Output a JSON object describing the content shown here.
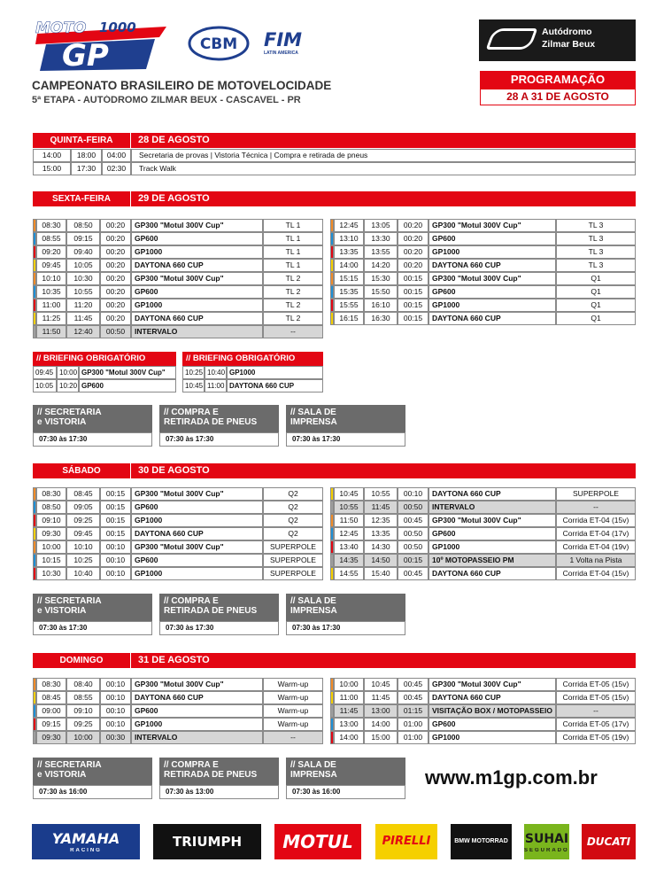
{
  "header": {
    "logo": {
      "moto": "MOTO",
      "number": "1000",
      "gp": "GP"
    },
    "cbm": "CBM",
    "fim": "FIM",
    "fim_sub": "LATIN AMERICA",
    "title": "CAMPEONATO BRASILEIRO DE MOTOVELOCIDADE",
    "subtitle": "5ª ETAPA - AUTÓDROMO ZILMAR BEUX - CASCAVEL - PR",
    "venue": [
      "Autódromo",
      "Zilmar Beux"
    ],
    "program": "PROGRAMAÇÃO",
    "dates": "28 A 31 DE AGOSTO"
  },
  "days": [
    {
      "day": "QUINTA-FEIRA",
      "date": "28 DE AGOSTO",
      "general": [
        [
          "14:00",
          "18:00",
          "04:00",
          "Secretaria de provas | Vistoria Técnica | Compra e retirada de pneus"
        ],
        [
          "15:00",
          "17:30",
          "02:30",
          "Track Walk"
        ]
      ]
    },
    {
      "day": "SEXTA-FEIRA",
      "date": "29 DE AGOSTO",
      "left": [
        {
          "cells": [
            "08:30",
            "08:50",
            "00:20",
            "GP300 \"Motul 300V Cup\"",
            "TL 1"
          ],
          "color": "#f28c28"
        },
        {
          "cells": [
            "08:55",
            "09:15",
            "00:20",
            "GP600",
            "TL 1"
          ],
          "color": "#1e8fd6"
        },
        {
          "cells": [
            "09:20",
            "09:40",
            "00:20",
            "GP1000",
            "TL 1"
          ],
          "color": "#e30613"
        },
        {
          "cells": [
            "09:45",
            "10:05",
            "00:20",
            "DAYTONA 660 CUP",
            "TL 1"
          ],
          "color": "#f5d000"
        },
        {
          "cells": [
            "10:10",
            "10:30",
            "00:20",
            "GP300 \"Motul 300V Cup\"",
            "TL 2"
          ],
          "color": "#f28c28"
        },
        {
          "cells": [
            "10:35",
            "10:55",
            "00:20",
            "GP600",
            "TL 2"
          ],
          "color": "#1e8fd6"
        },
        {
          "cells": [
            "11:00",
            "11:20",
            "00:20",
            "GP1000",
            "TL 2"
          ],
          "color": "#e30613"
        },
        {
          "cells": [
            "11:25",
            "11:45",
            "00:20",
            "DAYTONA 660 CUP",
            "TL 2"
          ],
          "color": "#f5d000"
        },
        {
          "cells": [
            "11:50",
            "12:40",
            "00:50",
            "INTERVALO",
            "--"
          ],
          "color": "#9e9e9e",
          "background": "#d6d6d6"
        }
      ],
      "right": [
        {
          "cells": [
            "12:45",
            "13:05",
            "00:20",
            "GP300 \"Motul 300V Cup\"",
            "TL 3"
          ],
          "color": "#f28c28"
        },
        {
          "cells": [
            "13:10",
            "13:30",
            "00:20",
            "GP600",
            "TL 3"
          ],
          "color": "#1e8fd6"
        },
        {
          "cells": [
            "13:35",
            "13:55",
            "00:20",
            "GP1000",
            "TL 3"
          ],
          "color": "#e30613"
        },
        {
          "cells": [
            "14:00",
            "14:20",
            "00:20",
            "DAYTONA 660 CUP",
            "TL 3"
          ],
          "color": "#f5d000"
        },
        {
          "cells": [
            "15:15",
            "15:30",
            "00:15",
            "GP300 \"Motul 300V Cup\"",
            "Q1"
          ],
          "color": "#f28c28"
        },
        {
          "cells": [
            "15:35",
            "15:50",
            "00:15",
            "GP600",
            "Q1"
          ],
          "color": "#1e8fd6"
        },
        {
          "cells": [
            "15:55",
            "16:10",
            "00:15",
            "GP1000",
            "Q1"
          ],
          "color": "#e30613"
        },
        {
          "cells": [
            "16:15",
            "16:30",
            "00:15",
            "DAYTONA 660 CUP",
            "Q1"
          ],
          "color": "#f5d000"
        }
      ],
      "briefings": [
        {
          "title": "// BRIEFING OBRIGATÓRIO",
          "rows": [
            [
              "09:45",
              "10:00",
              "GP300 \"Motul 300V Cup\""
            ],
            [
              "10:05",
              "10:20",
              "GP600"
            ]
          ]
        },
        {
          "title": "// BRIEFING OBRIGATÓRIO",
          "rows": [
            [
              "10:25",
              "10:40",
              "GP1000"
            ],
            [
              "10:45",
              "11:00",
              "DAYTONA 660 CUP"
            ]
          ]
        }
      ],
      "info": [
        {
          "title": [
            "// SECRETARIA",
            "e VISTORIA"
          ],
          "time": "07:30 às 17:30"
        },
        {
          "title": [
            "// COMPRA E",
            "RETIRADA DE PNEUS"
          ],
          "time": "07:30 às 17:30"
        },
        {
          "title": [
            "// SALA DE",
            "IMPRENSA"
          ],
          "time": "07:30 às 17:30"
        }
      ]
    },
    {
      "day": "SÁBADO",
      "date": "30 DE AGOSTO",
      "left": [
        {
          "cells": [
            "08:30",
            "08:45",
            "00:15",
            "GP300 \"Motul 300V Cup\"",
            "Q2"
          ],
          "color": "#f28c28"
        },
        {
          "cells": [
            "08:50",
            "09:05",
            "00:15",
            "GP600",
            "Q2"
          ],
          "color": "#1e8fd6"
        },
        {
          "cells": [
            "09:10",
            "09:25",
            "00:15",
            "GP1000",
            "Q2"
          ],
          "color": "#e30613"
        },
        {
          "cells": [
            "09:30",
            "09:45",
            "00:15",
            "DAYTONA 660 CUP",
            "Q2"
          ],
          "color": "#f5d000"
        },
        {
          "cells": [
            "10:00",
            "10:10",
            "00:10",
            "GP300 \"Motul 300V Cup\"",
            "SUPERPOLE"
          ],
          "color": "#f28c28"
        },
        {
          "cells": [
            "10:15",
            "10:25",
            "00:10",
            "GP600",
            "SUPERPOLE"
          ],
          "color": "#1e8fd6"
        },
        {
          "cells": [
            "10:30",
            "10:40",
            "00:10",
            "GP1000",
            "SUPERPOLE"
          ],
          "color": "#e30613"
        }
      ],
      "right": [
        {
          "cells": [
            "10:45",
            "10:55",
            "00:10",
            "DAYTONA 660 CUP",
            "SUPERPOLE"
          ],
          "color": "#f5d000"
        },
        {
          "cells": [
            "10:55",
            "11:45",
            "00:50",
            "INTERVALO",
            "--"
          ],
          "color": "#9e9e9e",
          "background": "#d6d6d6"
        },
        {
          "cells": [
            "11:50",
            "12:35",
            "00:45",
            "GP300 \"Motul 300V Cup\"",
            "Corrida ET-04 (15v)"
          ],
          "color": "#f28c28"
        },
        {
          "cells": [
            "12:45",
            "13:35",
            "00:50",
            "GP600",
            "Corrida ET-04 (17v)"
          ],
          "color": "#1e8fd6"
        },
        {
          "cells": [
            "13:40",
            "14:30",
            "00:50",
            "GP1000",
            "Corrida ET-04 (19v)"
          ],
          "color": "#e30613"
        },
        {
          "cells": [
            "14:35",
            "14:50",
            "00:15",
            "10º MOTOPASSEIO PM",
            "1 Volta na Pista"
          ],
          "color": "#9e9e9e",
          "background": "#d6d6d6"
        },
        {
          "cells": [
            "14:55",
            "15:40",
            "00:45",
            "DAYTONA 660 CUP",
            "Corrida ET-04 (15v)"
          ],
          "color": "#f5d000"
        }
      ],
      "info": [
        {
          "title": [
            "// SECRETARIA",
            "e VISTORIA"
          ],
          "time": "07:30 às 17:30"
        },
        {
          "title": [
            "// COMPRA E",
            "RETIRADA DE PNEUS"
          ],
          "time": "07:30 às 17:30"
        },
        {
          "title": [
            "// SALA DE",
            "IMPRENSA"
          ],
          "time": "07:30 às 17:30"
        }
      ]
    },
    {
      "day": "DOMINGO",
      "date": "31 DE AGOSTO",
      "left": [
        {
          "cells": [
            "08:30",
            "08:40",
            "00:10",
            "GP300 \"Motul 300V Cup\"",
            "Warm-up"
          ],
          "color": "#f28c28"
        },
        {
          "cells": [
            "08:45",
            "08:55",
            "00:10",
            "DAYTONA 660 CUP",
            "Warm-up"
          ],
          "color": "#f5d000"
        },
        {
          "cells": [
            "09:00",
            "09:10",
            "00:10",
            "GP600",
            "Warm-up"
          ],
          "color": "#1e8fd6"
        },
        {
          "cells": [
            "09:15",
            "09:25",
            "00:10",
            "GP1000",
            "Warm-up"
          ],
          "color": "#e30613"
        },
        {
          "cells": [
            "09:30",
            "10:00",
            "00:30",
            "INTERVALO",
            "--"
          ],
          "color": "#9e9e9e",
          "background": "#d6d6d6"
        }
      ],
      "right": [
        {
          "cells": [
            "10:00",
            "10:45",
            "00:45",
            "GP300 \"Motul 300V Cup\"",
            "Corrida ET-05 (15v)"
          ],
          "color": "#f28c28"
        },
        {
          "cells": [
            "11:00",
            "11:45",
            "00:45",
            "DAYTONA 660 CUP",
            "Corrida ET-05 (15v)"
          ],
          "color": "#f5d000"
        },
        {
          "cells": [
            "11:45",
            "13:00",
            "01:15",
            "VISITAÇÃO BOX / MOTOPASSEIO",
            "--"
          ],
          "color": "#9e9e9e",
          "background": "#d6d6d6"
        },
        {
          "cells": [
            "13:00",
            "14:00",
            "01:00",
            "GP600",
            "Corrida ET-05 (17v)"
          ],
          "color": "#1e8fd6"
        },
        {
          "cells": [
            "14:00",
            "15:00",
            "01:00",
            "GP1000",
            "Corrida ET-05 (19v)"
          ],
          "color": "#e30613"
        }
      ],
      "info": [
        {
          "title": [
            "// SECRETARIA",
            "e VISTORIA"
          ],
          "time": "07:30 às 16:00"
        },
        {
          "title": [
            "// COMPRA E",
            "RETIRADA DE PNEUS"
          ],
          "time": "07:30 às 13:00"
        },
        {
          "title": [
            "// SALA DE",
            "IMPRENSA"
          ],
          "time": "07:30 às 16:00"
        }
      ]
    }
  ],
  "website": "www.m1gp.com.br",
  "sponsors": [
    {
      "name": "YAMAHA",
      "sub": "RACING"
    },
    {
      "name": "TRIUMPH"
    },
    {
      "name": "MOTUL"
    },
    {
      "name": "PIRELLI"
    },
    {
      "name": "BMW MOTORRAD"
    },
    {
      "name": "SUHAI",
      "sub": "SEGURADORA"
    },
    {
      "name": "DUCATI"
    }
  ]
}
